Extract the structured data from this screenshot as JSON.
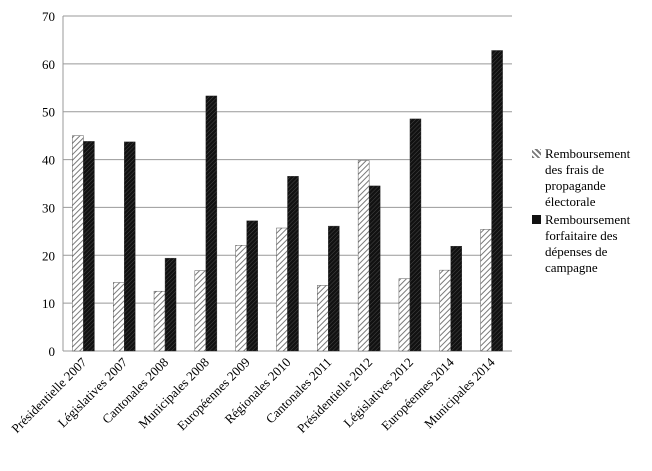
{
  "chart_data": {
    "type": "bar",
    "categories": [
      "Présidentielle 2007",
      "Législatives 2007",
      "Cantonales 2008",
      "Municipales 2008",
      "Européennes 2009",
      "Régionales 2010",
      "Cantonales 2011",
      "Présidentielle 2012",
      "Législatives 2012",
      "Européennes 2014",
      "Municipales 2014"
    ],
    "series": [
      {
        "name": "Remboursement des frais de propagande électorale",
        "color": "#7a7a7a",
        "values": [
          45,
          14.3,
          12.5,
          16.8,
          22.1,
          25.7,
          13.7,
          39.8,
          15.1,
          16.9,
          25.4
        ]
      },
      {
        "name": "Remboursement forfaitaire des dépenses de campagne",
        "color": "#111111",
        "values": [
          43.8,
          43.7,
          19.4,
          53.3,
          27.2,
          36.5,
          26.1,
          34.5,
          48.5,
          21.9,
          62.8
        ]
      }
    ],
    "ylim": [
      0,
      70
    ],
    "yticks": [
      0,
      10,
      20,
      30,
      40,
      50,
      60,
      70
    ],
    "grid": true,
    "legend": "right"
  }
}
